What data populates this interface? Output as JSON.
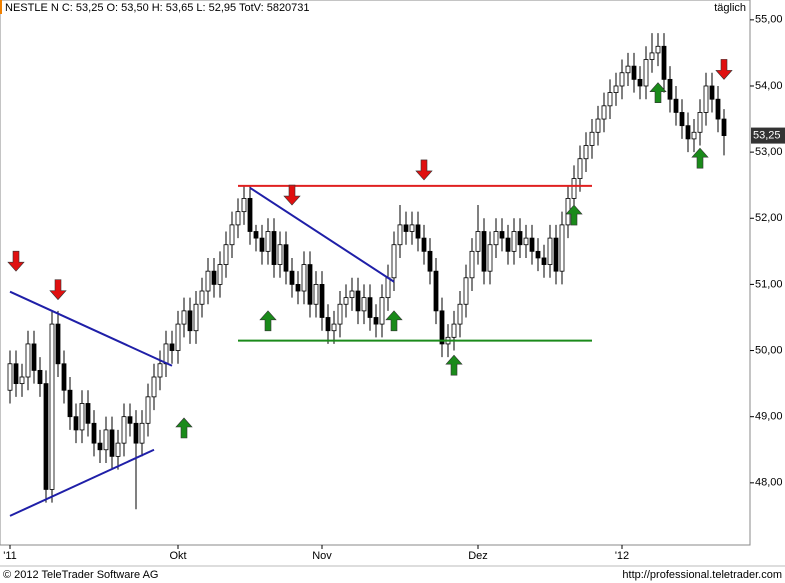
{
  "chart_data": {
    "type": "candlestick",
    "title": "NESTLE N C: 53,25 O: 53,50 H: 53,65 L: 52,95 TotV: 5820731",
    "period": "täglich",
    "footer_left": "© 2012 TeleTrader Software AG",
    "footer_right": "http://professional.teletrader.com",
    "last_price": {
      "value": 53.25,
      "label": "53,25"
    },
    "ylim": [
      47.06,
      55.3
    ],
    "yticks": [
      {
        "value": 48,
        "label": "48,00"
      },
      {
        "value": 49,
        "label": "49,00"
      },
      {
        "value": 50,
        "label": "50,00"
      },
      {
        "value": 51,
        "label": "51,00"
      },
      {
        "value": 52,
        "label": "52,00"
      },
      {
        "value": 53,
        "label": "53,00"
      },
      {
        "value": 54,
        "label": "54,00"
      },
      {
        "value": 55,
        "label": "55,00"
      }
    ],
    "categories": [
      "'11",
      null,
      null,
      null,
      null,
      null,
      null,
      null,
      null,
      null,
      null,
      null,
      null,
      null,
      null,
      null,
      null,
      null,
      null,
      null,
      null,
      null,
      null,
      null,
      null,
      null,
      null,
      null,
      "Okt",
      null,
      null,
      null,
      null,
      null,
      null,
      null,
      null,
      null,
      null,
      null,
      null,
      null,
      null,
      null,
      null,
      null,
      null,
      null,
      null,
      null,
      null,
      null,
      "Nov",
      null,
      null,
      null,
      null,
      null,
      null,
      null,
      null,
      null,
      null,
      null,
      null,
      null,
      null,
      null,
      null,
      null,
      null,
      null,
      null,
      null,
      null,
      null,
      null,
      null,
      "Dez",
      null,
      null,
      null,
      null,
      null,
      null,
      null,
      null,
      null,
      null,
      null,
      null,
      null,
      null,
      null,
      null,
      null,
      null,
      null,
      null,
      null,
      null,
      null,
      "'12",
      null,
      null,
      null,
      null,
      null,
      null,
      null,
      null,
      null,
      null,
      null,
      null,
      null,
      null,
      null,
      null,
      null
    ],
    "open": [
      49.4,
      49.8,
      49.5,
      49.6,
      50.1,
      49.7,
      49.5,
      47.9,
      50.4,
      49.8,
      49.4,
      49.0,
      48.8,
      49.2,
      48.9,
      48.6,
      48.5,
      48.8,
      48.4,
      48.6,
      49.0,
      48.9,
      48.6,
      48.9,
      49.3,
      49.6,
      49.8,
      50.1,
      50.0,
      50.4,
      50.6,
      50.3,
      50.7,
      50.9,
      51.2,
      51.0,
      51.3,
      51.6,
      51.9,
      52.1,
      52.3,
      51.8,
      51.7,
      51.5,
      51.8,
      51.3,
      51.6,
      51.2,
      51.0,
      50.9,
      51.3,
      50.7,
      51.0,
      50.5,
      50.3,
      50.4,
      50.7,
      50.8,
      50.9,
      50.6,
      50.8,
      50.5,
      50.4,
      50.8,
      51.1,
      51.6,
      51.9,
      51.8,
      51.9,
      51.7,
      51.5,
      51.2,
      50.6,
      50.1,
      50.2,
      50.4,
      50.7,
      51.1,
      51.5,
      51.8,
      51.2,
      51.6,
      51.8,
      51.7,
      51.5,
      51.8,
      51.6,
      51.7,
      51.5,
      51.4,
      51.3,
      51.7,
      51.2,
      51.9,
      52.3,
      52.6,
      52.9,
      53.1,
      53.3,
      53.5,
      53.7,
      53.9,
      54.0,
      54.2,
      54.3,
      54.1,
      54.0,
      54.4,
      54.5,
      54.6,
      54.1,
      53.8,
      53.6,
      53.4,
      53.2,
      53.3,
      53.6,
      54.0,
      53.8,
      53.5
    ],
    "high": [
      50.0,
      50.0,
      49.8,
      50.3,
      50.3,
      49.9,
      49.7,
      50.6,
      50.6,
      50.0,
      49.6,
      49.2,
      49.4,
      49.4,
      49.1,
      48.8,
      49.0,
      49.0,
      48.8,
      49.2,
      49.2,
      49.1,
      49.1,
      49.5,
      49.8,
      50.0,
      50.3,
      50.3,
      50.6,
      50.8,
      50.8,
      50.9,
      51.1,
      51.4,
      51.4,
      51.5,
      51.8,
      52.1,
      52.3,
      52.5,
      52.5,
      51.9,
      51.9,
      52.0,
      52.0,
      51.8,
      51.8,
      51.4,
      51.2,
      51.5,
      51.5,
      51.2,
      51.2,
      50.7,
      50.6,
      50.9,
      51.0,
      51.1,
      51.1,
      51.0,
      51.0,
      50.7,
      51.0,
      51.3,
      51.8,
      52.2,
      52.1,
      52.1,
      52.1,
      51.9,
      51.7,
      51.4,
      50.8,
      50.4,
      50.6,
      50.9,
      51.3,
      51.7,
      52.2,
      52.0,
      51.8,
      52.0,
      52.0,
      51.9,
      52.0,
      52.0,
      51.9,
      51.9,
      51.7,
      51.6,
      51.9,
      51.9,
      52.1,
      52.5,
      52.8,
      53.1,
      53.3,
      53.5,
      53.7,
      53.9,
      54.1,
      54.2,
      54.4,
      54.5,
      54.5,
      54.3,
      54.6,
      54.8,
      54.8,
      54.8,
      54.3,
      54.0,
      53.8,
      53.6,
      53.5,
      53.8,
      54.2,
      54.2,
      54.0,
      53.65
    ],
    "low": [
      49.2,
      49.3,
      49.3,
      49.4,
      49.5,
      49.3,
      47.7,
      47.7,
      49.6,
      49.2,
      48.8,
      48.6,
      48.6,
      48.7,
      48.4,
      48.3,
      48.3,
      48.2,
      48.2,
      48.4,
      48.7,
      47.6,
      48.4,
      48.7,
      49.1,
      49.4,
      49.6,
      49.8,
      49.8,
      50.2,
      50.1,
      50.1,
      50.5,
      50.7,
      50.8,
      50.8,
      51.1,
      51.4,
      51.7,
      51.9,
      51.6,
      51.5,
      51.3,
      51.3,
      51.1,
      51.1,
      51.0,
      50.8,
      50.7,
      50.7,
      50.5,
      50.5,
      50.3,
      50.1,
      50.1,
      50.2,
      50.5,
      50.6,
      50.4,
      50.4,
      50.3,
      50.2,
      50.2,
      50.6,
      50.9,
      51.4,
      51.6,
      51.6,
      51.5,
      51.3,
      51.0,
      50.4,
      49.9,
      49.9,
      50.0,
      50.2,
      50.5,
      50.9,
      51.3,
      51.0,
      51.0,
      51.4,
      51.5,
      51.3,
      51.3,
      51.4,
      51.4,
      51.3,
      51.2,
      51.1,
      51.1,
      51.0,
      51.0,
      51.7,
      52.1,
      52.4,
      52.7,
      52.9,
      53.1,
      53.3,
      53.5,
      53.7,
      53.8,
      54.0,
      53.9,
      53.8,
      53.8,
      54.2,
      54.3,
      53.9,
      53.6,
      53.4,
      53.2,
      53.0,
      53.0,
      53.1,
      53.4,
      53.6,
      53.3,
      52.95
    ],
    "close": [
      49.8,
      49.5,
      49.6,
      50.1,
      49.7,
      49.5,
      47.9,
      50.4,
      49.8,
      49.4,
      49.0,
      48.8,
      49.2,
      48.9,
      48.6,
      48.5,
      48.8,
      48.4,
      48.6,
      49.0,
      48.9,
      48.6,
      48.9,
      49.3,
      49.6,
      49.8,
      50.1,
      50.0,
      50.4,
      50.6,
      50.3,
      50.7,
      50.9,
      51.2,
      51.0,
      51.3,
      51.6,
      51.9,
      52.1,
      52.3,
      51.8,
      51.7,
      51.5,
      51.8,
      51.3,
      51.6,
      51.2,
      51.0,
      50.9,
      51.3,
      50.7,
      51.0,
      50.5,
      50.3,
      50.4,
      50.7,
      50.8,
      50.9,
      50.6,
      50.8,
      50.5,
      50.4,
      50.8,
      51.1,
      51.6,
      51.9,
      51.8,
      51.9,
      51.7,
      51.5,
      51.2,
      50.6,
      50.1,
      50.2,
      50.4,
      50.7,
      51.1,
      51.5,
      51.8,
      51.2,
      51.6,
      51.8,
      51.7,
      51.5,
      51.8,
      51.6,
      51.7,
      51.5,
      51.4,
      51.3,
      51.7,
      51.2,
      51.9,
      52.3,
      52.6,
      52.9,
      53.1,
      53.3,
      53.5,
      53.7,
      53.9,
      54.0,
      54.2,
      54.3,
      54.1,
      54.0,
      54.4,
      54.5,
      54.6,
      54.1,
      53.8,
      53.6,
      53.4,
      53.2,
      53.3,
      53.6,
      54.0,
      53.8,
      53.5,
      53.25
    ],
    "trendlines": [
      {
        "color": "#1f1fa8",
        "x": [
          0,
          27
        ],
        "y": [
          50.89,
          49.77
        ]
      },
      {
        "color": "#1f1fa8",
        "x": [
          0,
          24
        ],
        "y": [
          47.5,
          48.5
        ]
      },
      {
        "color": "#1f1fa8",
        "x": [
          40,
          64
        ],
        "y": [
          52.46,
          51.04
        ]
      },
      {
        "color": "#e02020",
        "x": [
          38,
          97
        ],
        "y": [
          52.49,
          52.49
        ]
      },
      {
        "color": "#1a8a1a",
        "x": [
          38,
          97
        ],
        "y": [
          50.15,
          50.15
        ]
      }
    ],
    "arrows": [
      {
        "dir": "down",
        "color": "#e01010",
        "x": 1,
        "y": 51.2
      },
      {
        "dir": "down",
        "color": "#e01010",
        "x": 8,
        "y": 50.77
      },
      {
        "dir": "down",
        "color": "#e01010",
        "x": 47,
        "y": 52.2
      },
      {
        "dir": "down",
        "color": "#e01010",
        "x": 69,
        "y": 52.58
      },
      {
        "dir": "down",
        "color": "#e01010",
        "x": 119,
        "y": 54.1
      },
      {
        "dir": "up",
        "color": "#1a8a1a",
        "x": 29,
        "y": 48.98
      },
      {
        "dir": "up",
        "color": "#1a8a1a",
        "x": 43,
        "y": 50.6
      },
      {
        "dir": "up",
        "color": "#1a8a1a",
        "x": 64,
        "y": 50.6
      },
      {
        "dir": "up",
        "color": "#1a8a1a",
        "x": 74,
        "y": 49.93
      },
      {
        "dir": "up",
        "color": "#1a8a1a",
        "x": 94,
        "y": 52.2
      },
      {
        "dir": "up",
        "color": "#1a8a1a",
        "x": 108,
        "y": 54.05
      },
      {
        "dir": "up",
        "color": "#1a8a1a",
        "x": 115,
        "y": 53.06
      }
    ]
  }
}
